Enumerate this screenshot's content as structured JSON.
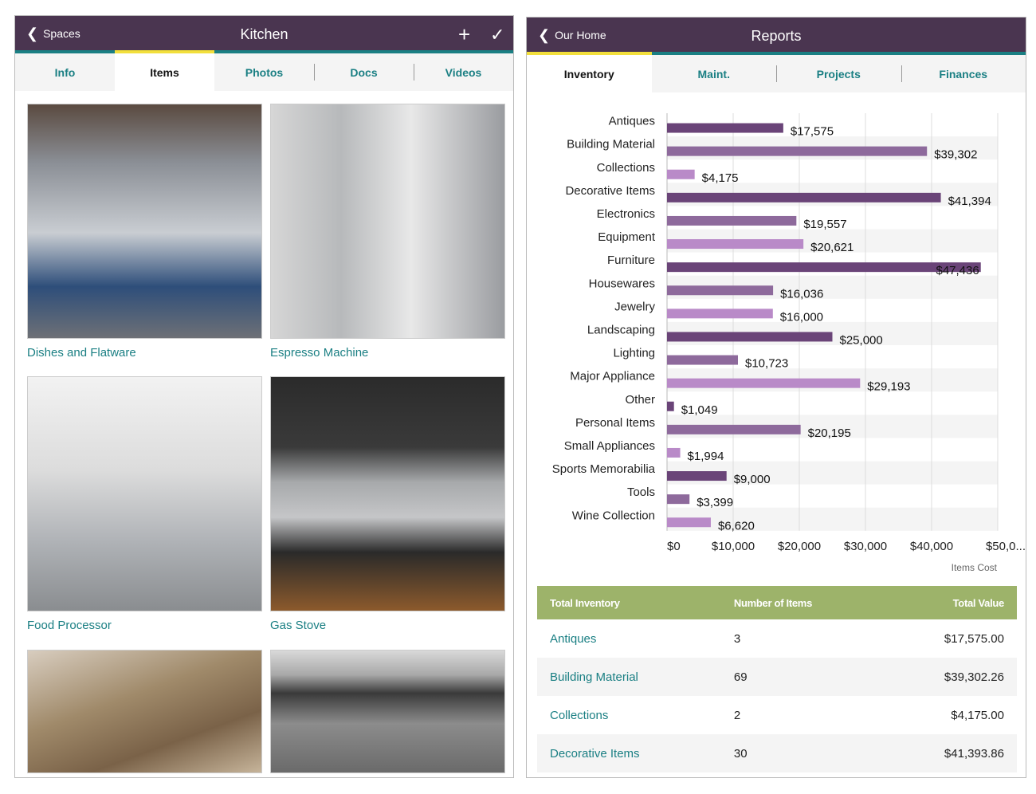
{
  "left": {
    "header": {
      "back_label": "Spaces",
      "title": "Kitchen",
      "add_icon": "plus-icon",
      "done_icon": "check-icon"
    },
    "tabs": [
      {
        "label": "Info"
      },
      {
        "label": "Items",
        "active": true
      },
      {
        "label": "Photos"
      },
      {
        "label": "Docs"
      },
      {
        "label": "Videos"
      }
    ],
    "items": [
      {
        "label": "Dishes and Flatware"
      },
      {
        "label": "Espresso Machine"
      },
      {
        "label": "Food Processor"
      },
      {
        "label": "Gas Stove"
      },
      {
        "label": ""
      },
      {
        "label": ""
      }
    ]
  },
  "right": {
    "header": {
      "back_label": "Our Home",
      "title": "Reports"
    },
    "tabs": [
      {
        "label": "Inventory",
        "active": true
      },
      {
        "label": "Maint."
      },
      {
        "label": "Projects"
      },
      {
        "label": "Finances"
      }
    ],
    "table": {
      "headers": [
        "Total Inventory",
        "Number of Items",
        "Total Value"
      ],
      "rows": [
        [
          "Antiques",
          "3",
          "$17,575.00"
        ],
        [
          "Building Material",
          "69",
          "$39,302.26"
        ],
        [
          "Collections",
          "2",
          "$4,175.00"
        ],
        [
          "Decorative Items",
          "30",
          "$41,393.86"
        ]
      ]
    }
  },
  "chart_data": {
    "type": "bar",
    "orientation": "horizontal",
    "categories": [
      "Antiques",
      "Building Material",
      "Collections",
      "Decorative Items",
      "Electronics",
      "Equipment",
      "Furniture",
      "Housewares",
      "Jewelry",
      "Landscaping",
      "Lighting",
      "Major Appliance",
      "Other",
      "Personal Items",
      "Small Appliances",
      "Sports Memorabilia",
      "Tools",
      "Wine Collection"
    ],
    "values": [
      17575,
      39302,
      4175,
      41394,
      19557,
      20621,
      47436,
      16036,
      16000,
      25000,
      10723,
      29193,
      1049,
      20195,
      1994,
      9000,
      3399,
      6620
    ],
    "data_labels": [
      "$17,575",
      "$39,302",
      "$4,175",
      "$41,394",
      "$19,557",
      "$20,621",
      "$47,436",
      "$16,036",
      "$16,000",
      "$25,000",
      "$10,723",
      "$29,193",
      "$1,049",
      "$20,195",
      "$1,994",
      "$9,000",
      "$3,399",
      "$6,620"
    ],
    "xticks": [
      "$0",
      "$10,000",
      "$20,000",
      "$30,000",
      "$40,000",
      "$50,0..."
    ],
    "xlim": [
      0,
      50000
    ],
    "xlabel": "Items Cost",
    "grid": true,
    "colors": [
      "#6a4478",
      "#8e6a9c",
      "#b98ac8"
    ]
  }
}
